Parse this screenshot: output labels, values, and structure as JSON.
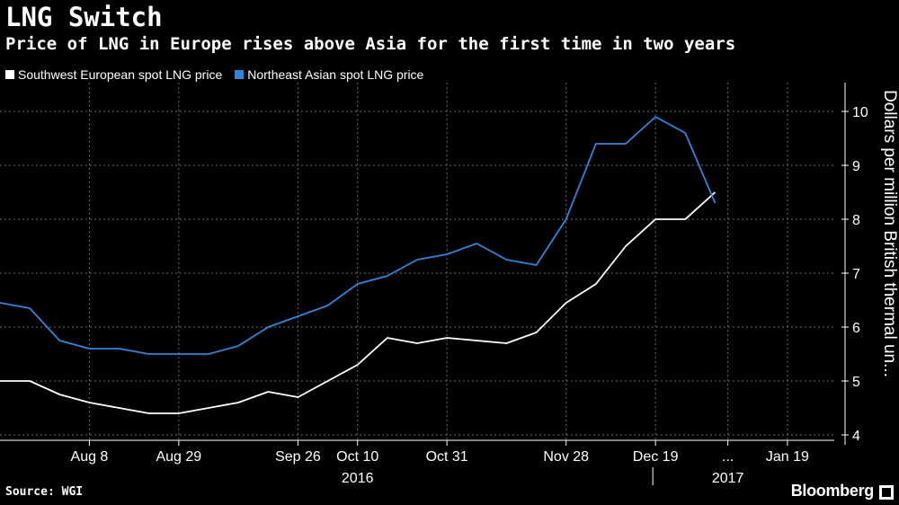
{
  "title": "LNG Switch",
  "subtitle": "Price of LNG in Europe rises above Asia for the first time in two years",
  "source": "Source: WGI",
  "brand": "Bloomberg",
  "colors": {
    "background": "#000000",
    "europe": "#ffffff",
    "asia": "#2f86d9",
    "grid": "#6b6b6b",
    "text": "#ffffff"
  },
  "icons": {
    "brand_mark": "bloomberg-square-icon"
  },
  "chart_data": {
    "type": "line",
    "title": "LNG Switch",
    "subtitle": "Price of LNG in Europe rises above Asia for the first time in two years",
    "ylabel": "Dollars per million British thermal un...",
    "ylim": [
      3.9,
      10.4
    ],
    "yticks": [
      4,
      5,
      6,
      7,
      8,
      9,
      10
    ],
    "grid": true,
    "legend_position": "top-left",
    "x": [
      "2016-07-18",
      "2016-07-25",
      "2016-08-01",
      "2016-08-08",
      "2016-08-15",
      "2016-08-22",
      "2016-08-29",
      "2016-09-05",
      "2016-09-12",
      "2016-09-19",
      "2016-09-26",
      "2016-10-03",
      "2016-10-10",
      "2016-10-17",
      "2016-10-24",
      "2016-10-31",
      "2016-11-07",
      "2016-11-14",
      "2016-11-21",
      "2016-11-28",
      "2016-12-05",
      "2016-12-12",
      "2016-12-19",
      "2016-12-26",
      "2017-01-02",
      "2017-01-09",
      "2017-01-16"
    ],
    "xlim": [
      "2016-07-18",
      "2017-01-30"
    ],
    "xticks": [
      {
        "date": "2016-08-08",
        "label": "Aug 8"
      },
      {
        "date": "2016-08-29",
        "label": "Aug 29"
      },
      {
        "date": "2016-09-26",
        "label": "Sep 26"
      },
      {
        "date": "2016-10-10",
        "label": "Oct 10"
      },
      {
        "date": "2016-10-31",
        "label": "Oct 31"
      },
      {
        "date": "2016-11-28",
        "label": "Nov 28"
      },
      {
        "date": "2016-12-19",
        "label": "Dec 19"
      },
      {
        "date": "2017-01-05",
        "label": "..."
      },
      {
        "date": "2017-01-19",
        "label": "Jan 19"
      }
    ],
    "year_labels": [
      {
        "date": "2016-10-10",
        "label": "2016"
      },
      {
        "date": "2017-01-05",
        "label": "2017"
      }
    ],
    "series": [
      {
        "name": "Southwest European spot LNG price",
        "color": "#ffffff",
        "values": [
          5.0,
          5.0,
          4.75,
          4.6,
          4.5,
          4.4,
          4.4,
          4.5,
          4.6,
          4.8,
          4.7,
          5.0,
          5.3,
          5.8,
          5.7,
          5.8,
          5.75,
          5.7,
          5.9,
          6.45,
          6.8,
          7.5,
          8.0,
          8.0,
          8.5,
          null,
          null
        ]
      },
      {
        "name": "Northeast Asian spot LNG price",
        "color": "#2f86d9",
        "values": [
          6.45,
          6.35,
          5.75,
          5.6,
          5.6,
          5.5,
          5.5,
          5.5,
          5.65,
          6.0,
          6.2,
          6.4,
          6.8,
          6.95,
          7.25,
          7.35,
          7.55,
          7.25,
          7.15,
          8.0,
          9.4,
          9.4,
          9.9,
          9.6,
          8.3,
          null,
          null
        ]
      }
    ]
  }
}
